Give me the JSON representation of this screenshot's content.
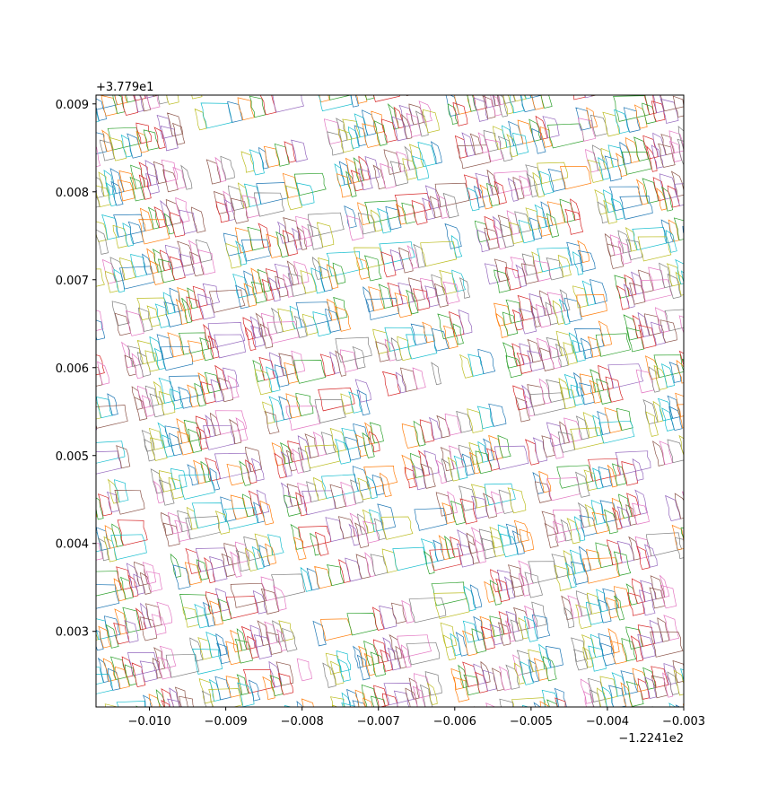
{
  "chart_data": {
    "type": "scatter",
    "title": "",
    "xlabel": "",
    "ylabel": "",
    "x_offset_label": "−1.2241e2",
    "y_offset_label": "+3.779e1",
    "xlim": [
      -0.0107,
      -0.003
    ],
    "ylim": [
      0.00214,
      0.0091
    ],
    "x_ticks": [
      -0.01,
      -0.009,
      -0.008,
      -0.007,
      -0.006,
      -0.005,
      -0.004,
      -0.003
    ],
    "x_tick_labels": [
      "−0.010",
      "−0.009",
      "−0.008",
      "−0.007",
      "−0.006",
      "−0.005",
      "−0.004",
      "−0.003"
    ],
    "y_ticks": [
      0.003,
      0.004,
      0.005,
      0.006,
      0.007,
      0.008,
      0.009
    ],
    "y_tick_labels": [
      "0.003",
      "0.004",
      "0.005",
      "0.006",
      "0.007",
      "0.008",
      "0.009"
    ],
    "grid": false,
    "series_colors": [
      "#1f77b4",
      "#ff7f0e",
      "#2ca02c",
      "#d62728",
      "#9467bd",
      "#8c564b",
      "#e377c2",
      "#7f7f7f",
      "#bcbd22",
      "#17becf"
    ]
  }
}
